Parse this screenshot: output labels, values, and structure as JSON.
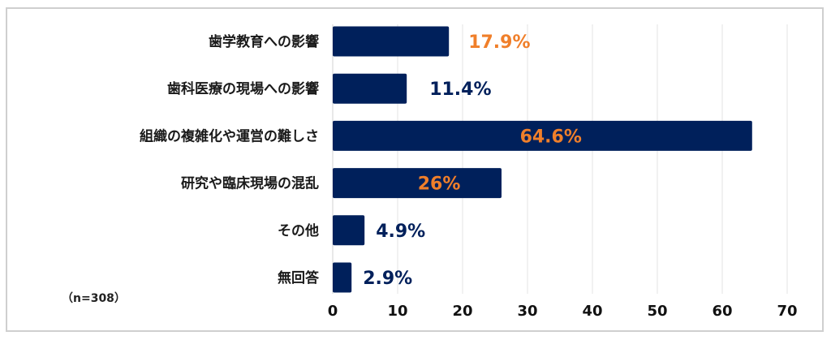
{
  "chart_data": {
    "type": "bar",
    "orientation": "horizontal",
    "categories": [
      "歯学教育への影響",
      "歯科医療の現場への影響",
      "組織の複雑化や運営の難しさ",
      "研究や臨床現場の混乱",
      "その他",
      "無回答"
    ],
    "values": [
      17.9,
      11.4,
      64.6,
      26,
      4.9,
      2.9
    ],
    "value_labels": [
      "17.9%",
      "11.4%",
      "64.6%",
      "26%",
      "4.9%",
      "2.9%"
    ],
    "value_label_colors": [
      "#F07F2A",
      "#00205B",
      "#F07F2A",
      "#F07F2A",
      "#00205B",
      "#00205B"
    ],
    "value_label_inside": [
      false,
      false,
      true,
      true,
      false,
      false
    ],
    "xlim": [
      0,
      70
    ],
    "xticks": [
      0,
      10,
      20,
      30,
      40,
      50,
      60,
      70
    ],
    "tick_labels": [
      "0",
      "10",
      "20",
      "30",
      "40",
      "50",
      "60",
      "70"
    ],
    "grid": true,
    "bar_color": "#00205B",
    "note": "（n=308）",
    "title": "",
    "xlabel": "",
    "ylabel": ""
  }
}
